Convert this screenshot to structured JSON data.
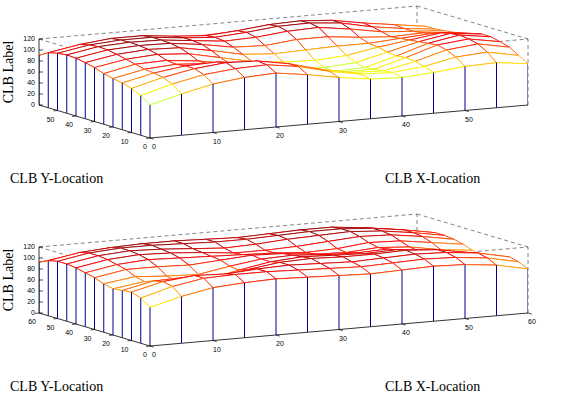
{
  "chart_data": [
    {
      "type": "surface",
      "xlabel": "CLB X-Location",
      "ylabel": "CLB Y-Location",
      "zlabel": "CLB Label",
      "x": [
        0,
        5,
        10,
        15,
        20,
        25,
        30,
        35,
        40,
        45,
        50,
        55,
        60
      ],
      "y": [
        0,
        5,
        10,
        15,
        20,
        25,
        30,
        35,
        40,
        45,
        50,
        55,
        60
      ],
      "z": [
        [
          60,
          75,
          88,
          95,
          98,
          90,
          80,
          72,
          70,
          74,
          80,
          82,
          75
        ],
        [
          72,
          88,
          100,
          106,
          108,
          100,
          86,
          76,
          74,
          80,
          92,
          96,
          85
        ],
        [
          80,
          95,
          106,
          112,
          110,
          100,
          85,
          74,
          72,
          84,
          100,
          106,
          95
        ],
        [
          85,
          98,
          106,
          108,
          102,
          92,
          80,
          70,
          70,
          86,
          104,
          110,
          100
        ],
        [
          88,
          100,
          104,
          100,
          94,
          84,
          74,
          66,
          68,
          84,
          102,
          112,
          104
        ],
        [
          92,
          104,
          106,
          100,
          90,
          80,
          72,
          68,
          72,
          86,
          100,
          110,
          104
        ],
        [
          98,
          108,
          112,
          108,
          96,
          84,
          78,
          76,
          80,
          90,
          98,
          106,
          100
        ],
        [
          102,
          112,
          116,
          114,
          104,
          92,
          88,
          90,
          92,
          92,
          96,
          100,
          96
        ],
        [
          105,
          115,
          118,
          117,
          110,
          100,
          98,
          104,
          104,
          98,
          94,
          96,
          92
        ],
        [
          106,
          116,
          119,
          118,
          112,
          106,
          108,
          114,
          116,
          108,
          98,
          94,
          90
        ],
        [
          104,
          114,
          118,
          118,
          112,
          108,
          112,
          118,
          119,
          114,
          102,
          94,
          88
        ],
        [
          100,
          110,
          116,
          116,
          110,
          106,
          110,
          116,
          118,
          114,
          104,
          96,
          88
        ],
        [
          90,
          100,
          106,
          108,
          102,
          100,
          102,
          106,
          108,
          104,
          96,
          88,
          80
        ]
      ],
      "xlim": [
        0,
        60
      ],
      "ylim": [
        0,
        60
      ],
      "zlim": [
        0,
        120
      ],
      "xticks": [
        0,
        10,
        20,
        30,
        40,
        50
      ],
      "yticks": [
        0,
        10,
        20,
        30,
        40,
        50
      ],
      "zticks": [
        0,
        20,
        40,
        60,
        80,
        100,
        120
      ]
    },
    {
      "type": "surface",
      "xlabel": "CLB X-Location",
      "ylabel": "CLB Y-Location",
      "zlabel": "CLB Label",
      "x": [
        0,
        5,
        10,
        15,
        20,
        25,
        30,
        35,
        40,
        45,
        50,
        55,
        60
      ],
      "y": [
        0,
        5,
        10,
        15,
        20,
        25,
        30,
        35,
        40,
        45,
        50,
        55,
        60
      ],
      "z": [
        [
          70,
          85,
          96,
          100,
          102,
          100,
          98,
          96,
          98,
          100,
          98,
          92,
          80
        ],
        [
          82,
          98,
          108,
          110,
          110,
          108,
          106,
          104,
          106,
          108,
          106,
          100,
          88
        ],
        [
          88,
          102,
          108,
          106,
          110,
          112,
          110,
          108,
          110,
          112,
          110,
          104,
          92
        ],
        [
          86,
          98,
          100,
          96,
          104,
          112,
          114,
          112,
          112,
          114,
          110,
          100,
          88
        ],
        [
          84,
          92,
          88,
          86,
          98,
          108,
          112,
          110,
          108,
          110,
          104,
          92,
          84
        ],
        [
          88,
          96,
          92,
          90,
          100,
          108,
          110,
          106,
          104,
          106,
          98,
          86,
          80
        ],
        [
          94,
          104,
          104,
          102,
          106,
          110,
          108,
          102,
          100,
          104,
          100,
          90,
          84
        ],
        [
          98,
          108,
          112,
          110,
          108,
          106,
          104,
          100,
          102,
          108,
          106,
          98,
          90
        ],
        [
          102,
          112,
          116,
          114,
          110,
          104,
          104,
          106,
          110,
          114,
          112,
          104,
          94
        ],
        [
          104,
          114,
          118,
          116,
          112,
          108,
          110,
          114,
          116,
          118,
          114,
          106,
          96
        ],
        [
          104,
          114,
          118,
          118,
          116,
          114,
          114,
          116,
          118,
          118,
          114,
          106,
          96
        ],
        [
          100,
          110,
          114,
          116,
          116,
          114,
          112,
          114,
          116,
          116,
          110,
          102,
          92
        ],
        [
          92,
          100,
          106,
          108,
          108,
          106,
          104,
          106,
          108,
          106,
          100,
          94,
          86
        ]
      ],
      "xlim": [
        0,
        60
      ],
      "ylim": [
        0,
        60
      ],
      "zlim": [
        0,
        120
      ],
      "xticks": [
        0,
        10,
        20,
        30,
        40,
        50,
        60
      ],
      "yticks": [
        0,
        10,
        20,
        30,
        40,
        50,
        60
      ],
      "zticks": [
        0,
        20,
        40,
        60,
        80,
        100,
        120
      ]
    }
  ]
}
